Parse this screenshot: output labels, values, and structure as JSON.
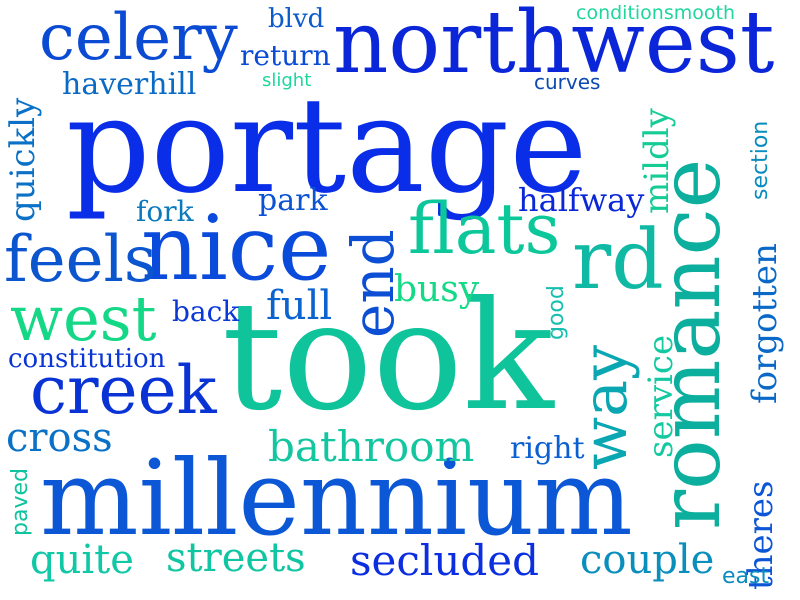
{
  "word_cloud": {
    "words": [
      {
        "text": "portage",
        "color": "#0a2ee8"
      },
      {
        "text": "took",
        "color": "#0fc39a"
      },
      {
        "text": "millennium",
        "color": "#0b57d6"
      },
      {
        "text": "northwest",
        "color": "#0b26d8"
      },
      {
        "text": "nice",
        "color": "#0b4bdc"
      },
      {
        "text": "romance",
        "color": "#0cae9d"
      },
      {
        "text": "celery",
        "color": "#0b4bd3"
      },
      {
        "text": "flats",
        "color": "#0cc79a"
      },
      {
        "text": "rd",
        "color": "#10b9a4"
      },
      {
        "text": "feels",
        "color": "#0b55cf"
      },
      {
        "text": "creek",
        "color": "#0a33d6"
      },
      {
        "text": "west",
        "color": "#14d886"
      },
      {
        "text": "end",
        "color": "#0c4fd5"
      },
      {
        "text": "way",
        "color": "#0aa7b3"
      },
      {
        "text": "bathroom",
        "color": "#13c6a0"
      },
      {
        "text": "streets",
        "color": "#10c5a2"
      },
      {
        "text": "secluded",
        "color": "#0b2fe0"
      },
      {
        "text": "couple",
        "color": "#0a8fbd"
      },
      {
        "text": "quite",
        "color": "#11c8a6"
      },
      {
        "text": "cross",
        "color": "#0a71c7"
      },
      {
        "text": "forgotten",
        "color": "#0a69c7"
      },
      {
        "text": "theres",
        "color": "#0b55d6"
      },
      {
        "text": "service",
        "color": "#14c9a1"
      },
      {
        "text": "quickly",
        "color": "#0a71c7"
      },
      {
        "text": "mildly",
        "color": "#15cc96"
      },
      {
        "text": "halfway",
        "color": "#0a27d8"
      },
      {
        "text": "busy",
        "color": "#14d986"
      },
      {
        "text": "full",
        "color": "#0b63cf"
      },
      {
        "text": "haverhill",
        "color": "#0a6bc4"
      },
      {
        "text": "return",
        "color": "#0a4bd6"
      },
      {
        "text": "blvd",
        "color": "#0b5bce"
      },
      {
        "text": "conditionsmooth",
        "color": "#1fd69c"
      },
      {
        "text": "constitution",
        "color": "#0a35d6"
      },
      {
        "text": "park",
        "color": "#0b52d5"
      },
      {
        "text": "fork",
        "color": "#0a79be"
      },
      {
        "text": "back",
        "color": "#0a37d9"
      },
      {
        "text": "right",
        "color": "#0a5fd1"
      },
      {
        "text": "slight",
        "color": "#1fd69c"
      },
      {
        "text": "curves",
        "color": "#0b4bb1"
      },
      {
        "text": "section",
        "color": "#0a8cbe"
      },
      {
        "text": "good",
        "color": "#18bfb0"
      },
      {
        "text": "paved",
        "color": "#0fc39e"
      },
      {
        "text": "east",
        "color": "#0a8cbe"
      }
    ]
  }
}
